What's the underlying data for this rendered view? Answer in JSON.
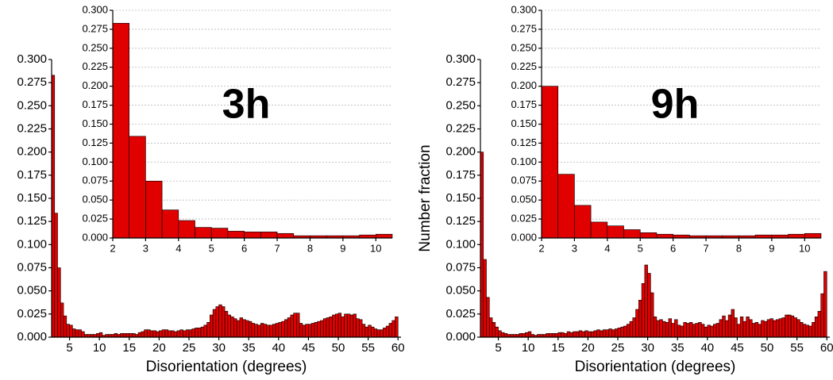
{
  "chart_data": [
    {
      "type": "histogram",
      "annotation": "3h",
      "x_label": "Disorientation (degrees)",
      "color": "#e00000",
      "bins": [
        2,
        2.5,
        3,
        3.5,
        4,
        4.5,
        5,
        5.5,
        6,
        6.5,
        7,
        7.5,
        8,
        8.5,
        9,
        9.5,
        10,
        10.5,
        11,
        11.5,
        12,
        12.5,
        13,
        13.5,
        14,
        14.5,
        15,
        15.5,
        16,
        16.5,
        17,
        17.5,
        18,
        18.5,
        19,
        19.5,
        20,
        20.5,
        21,
        21.5,
        22,
        22.5,
        23,
        23.5,
        24,
        24.5,
        25,
        25.5,
        26,
        26.5,
        27,
        27.5,
        28,
        28.5,
        29,
        29.5,
        30,
        30.5,
        31,
        31.5,
        32,
        32.5,
        33,
        33.5,
        34,
        34.5,
        35,
        35.5,
        36,
        36.5,
        37,
        37.5,
        38,
        38.5,
        39,
        39.5,
        40,
        40.5,
        41,
        41.5,
        42,
        42.5,
        43,
        43.5,
        44,
        44.5,
        45,
        45.5,
        46,
        46.5,
        47,
        47.5,
        48,
        48.5,
        49,
        49.5,
        50,
        50.5,
        51,
        51.5,
        52,
        52.5,
        53,
        53.5,
        54,
        54.5,
        55,
        55.5,
        56,
        56.5,
        57,
        57.5,
        58,
        58.5,
        59,
        59.5,
        60
      ],
      "counts": [
        0.283,
        0.134,
        0.075,
        0.037,
        0.023,
        0.014,
        0.013,
        0.009,
        0.008,
        0.008,
        0.006,
        0.003,
        0.003,
        0.003,
        0.003,
        0.004,
        0.005,
        0.002,
        0.003,
        0.003,
        0.003,
        0.004,
        0.003,
        0.004,
        0.004,
        0.004,
        0.004,
        0.004,
        0.003,
        0.005,
        0.006,
        0.008,
        0.008,
        0.007,
        0.007,
        0.006,
        0.007,
        0.008,
        0.008,
        0.007,
        0.007,
        0.006,
        0.007,
        0.008,
        0.007,
        0.008,
        0.008,
        0.009,
        0.01,
        0.01,
        0.011,
        0.013,
        0.016,
        0.024,
        0.03,
        0.033,
        0.035,
        0.033,
        0.028,
        0.024,
        0.022,
        0.02,
        0.018,
        0.021,
        0.019,
        0.018,
        0.017,
        0.015,
        0.014,
        0.013,
        0.015,
        0.014,
        0.013,
        0.013,
        0.014,
        0.015,
        0.016,
        0.017,
        0.019,
        0.021,
        0.024,
        0.026,
        0.026,
        0.015,
        0.013,
        0.014,
        0.014,
        0.015,
        0.016,
        0.017,
        0.018,
        0.02,
        0.021,
        0.022,
        0.024,
        0.025,
        0.026,
        0.022,
        0.025,
        0.025,
        0.024,
        0.025,
        0.02,
        0.019,
        0.014,
        0.011,
        0.013,
        0.011,
        0.009,
        0.008,
        0.008,
        0.01,
        0.012,
        0.015,
        0.018,
        0.022
      ],
      "xlim": [
        2,
        60.5
      ],
      "ylim": [
        0,
        0.3
      ],
      "xticks": [
        5,
        10,
        15,
        20,
        25,
        30,
        35,
        40,
        45,
        50,
        55,
        60
      ],
      "yticks": [
        {
          "value": 0,
          "label": "0.000"
        },
        {
          "value": 0.025,
          "label": "0.025"
        },
        {
          "value": 0.05,
          "label": "0.050"
        },
        {
          "value": 0.075,
          "label": "0.075"
        },
        {
          "value": 0.1,
          "label": "0.100"
        },
        {
          "value": 0.125,
          "label": "0.125"
        },
        {
          "value": 0.15,
          "label": "0.150"
        },
        {
          "value": 0.175,
          "label": "0.175"
        },
        {
          "value": 0.2,
          "label": "0.200"
        },
        {
          "value": 0.225,
          "label": "0.225"
        },
        {
          "value": 0.25,
          "label": "0.250"
        },
        {
          "value": 0.275,
          "label": "0.275"
        },
        {
          "value": 0.3,
          "label": "0.300"
        }
      ],
      "inset": {
        "xlim": [
          2,
          10.5
        ],
        "ylim": [
          0,
          0.3
        ],
        "grid": true,
        "xticks": [
          2,
          3,
          4,
          5,
          6,
          7,
          8,
          9,
          10
        ],
        "yticks": [
          {
            "value": 0,
            "label": "0.000"
          },
          {
            "value": 0.025,
            "label": "0.025"
          },
          {
            "value": 0.05,
            "label": "0.050"
          },
          {
            "value": 0.075,
            "label": "0.075"
          },
          {
            "value": 0.1,
            "label": "0.100"
          },
          {
            "value": 0.125,
            "label": "0.125"
          },
          {
            "value": 0.15,
            "label": "0.150"
          },
          {
            "value": 0.175,
            "label": "0.175"
          },
          {
            "value": 0.2,
            "label": "0.200"
          },
          {
            "value": 0.225,
            "label": "0.225"
          },
          {
            "value": 0.25,
            "label": "0.250"
          },
          {
            "value": 0.275,
            "label": "0.275"
          },
          {
            "value": 0.3,
            "label": "0.300"
          }
        ]
      }
    },
    {
      "type": "histogram",
      "annotation": "9h",
      "x_label": "Disorientation (degrees)",
      "y_label": "Number fraction",
      "color": "#e00000",
      "bins": [
        2,
        2.5,
        3,
        3.5,
        4,
        4.5,
        5,
        5.5,
        6,
        6.5,
        7,
        7.5,
        8,
        8.5,
        9,
        9.5,
        10,
        10.5,
        11,
        11.5,
        12,
        12.5,
        13,
        13.5,
        14,
        14.5,
        15,
        15.5,
        16,
        16.5,
        17,
        17.5,
        18,
        18.5,
        19,
        19.5,
        20,
        20.5,
        21,
        21.5,
        22,
        22.5,
        23,
        23.5,
        24,
        24.5,
        25,
        25.5,
        26,
        26.5,
        27,
        27.5,
        28,
        28.5,
        29,
        29.5,
        30,
        30.5,
        31,
        31.5,
        32,
        32.5,
        33,
        33.5,
        34,
        34.5,
        35,
        35.5,
        36,
        36.5,
        37,
        37.5,
        38,
        38.5,
        39,
        39.5,
        40,
        40.5,
        41,
        41.5,
        42,
        42.5,
        43,
        43.5,
        44,
        44.5,
        45,
        45.5,
        46,
        46.5,
        47,
        47.5,
        48,
        48.5,
        49,
        49.5,
        50,
        50.5,
        51,
        51.5,
        52,
        52.5,
        53,
        53.5,
        54,
        54.5,
        55,
        55.5,
        56,
        56.5,
        57,
        57.5,
        58,
        58.5,
        59,
        59.5,
        60
      ],
      "counts": [
        0.2,
        0.084,
        0.043,
        0.021,
        0.016,
        0.011,
        0.007,
        0.005,
        0.004,
        0.003,
        0.003,
        0.003,
        0.003,
        0.004,
        0.004,
        0.005,
        0.006,
        0.003,
        0.002,
        0.003,
        0.003,
        0.003,
        0.004,
        0.004,
        0.004,
        0.004,
        0.005,
        0.005,
        0.004,
        0.006,
        0.005,
        0.006,
        0.006,
        0.007,
        0.006,
        0.007,
        0.006,
        0.006,
        0.007,
        0.008,
        0.007,
        0.008,
        0.008,
        0.009,
        0.008,
        0.009,
        0.01,
        0.011,
        0.012,
        0.014,
        0.017,
        0.021,
        0.03,
        0.04,
        0.058,
        0.078,
        0.069,
        0.048,
        0.022,
        0.018,
        0.019,
        0.017,
        0.016,
        0.02,
        0.015,
        0.019,
        0.013,
        0.012,
        0.016,
        0.015,
        0.016,
        0.014,
        0.015,
        0.016,
        0.014,
        0.011,
        0.013,
        0.012,
        0.014,
        0.015,
        0.019,
        0.023,
        0.018,
        0.024,
        0.03,
        0.021,
        0.014,
        0.022,
        0.017,
        0.022,
        0.019,
        0.015,
        0.016,
        0.014,
        0.018,
        0.017,
        0.019,
        0.02,
        0.018,
        0.019,
        0.02,
        0.021,
        0.024,
        0.024,
        0.023,
        0.021,
        0.019,
        0.016,
        0.014,
        0.013,
        0.012,
        0.016,
        0.022,
        0.028,
        0.047,
        0.071
      ],
      "xlim": [
        2,
        60.5
      ],
      "ylim": [
        0,
        0.3
      ],
      "xticks": [
        5,
        10,
        15,
        20,
        25,
        30,
        35,
        40,
        45,
        50,
        55,
        60
      ],
      "yticks": [
        {
          "value": 0,
          "label": "0.000"
        },
        {
          "value": 0.025,
          "label": "0.025"
        },
        {
          "value": 0.05,
          "label": "0.050"
        },
        {
          "value": 0.075,
          "label": "0.075"
        },
        {
          "value": 0.1,
          "label": "0.100"
        },
        {
          "value": 0.125,
          "label": "0.125"
        },
        {
          "value": 0.15,
          "label": "0.150"
        },
        {
          "value": 0.175,
          "label": "0.175"
        },
        {
          "value": 0.2,
          "label": "0.200"
        },
        {
          "value": 0.225,
          "label": "0.225"
        },
        {
          "value": 0.25,
          "label": "0.250"
        },
        {
          "value": 0.275,
          "label": "0.275"
        },
        {
          "value": 0.3,
          "label": "0.300"
        }
      ],
      "inset": {
        "xlim": [
          2,
          10.5
        ],
        "ylim": [
          0,
          0.3
        ],
        "grid": true,
        "xticks": [
          2,
          3,
          4,
          5,
          6,
          7,
          8,
          9,
          10
        ],
        "yticks": [
          {
            "value": 0,
            "label": "0.000"
          },
          {
            "value": 0.025,
            "label": "0.025"
          },
          {
            "value": 0.05,
            "label": "0.050"
          },
          {
            "value": 0.075,
            "label": "0.075"
          },
          {
            "value": 0.1,
            "label": "0.100"
          },
          {
            "value": 0.125,
            "label": "0.125"
          },
          {
            "value": 0.15,
            "label": "0.150"
          },
          {
            "value": 0.175,
            "label": "0.175"
          },
          {
            "value": 0.2,
            "label": "0.200"
          },
          {
            "value": 0.225,
            "label": "0.225"
          },
          {
            "value": 0.25,
            "label": "0.250"
          },
          {
            "value": 0.275,
            "label": "0.275"
          },
          {
            "value": 0.3,
            "label": "0.300"
          }
        ]
      }
    }
  ]
}
